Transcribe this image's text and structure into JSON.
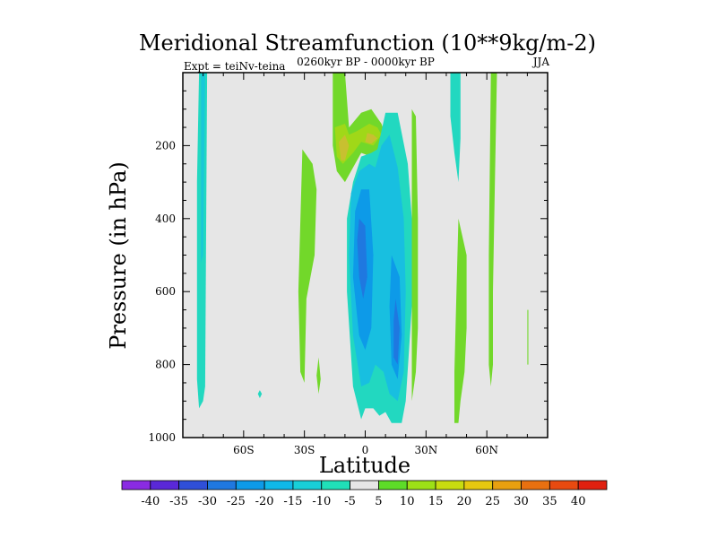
{
  "chart_data": {
    "type": "heatmap",
    "title": "Meridional Streamfunction (10**9kg/m-2)",
    "subtitle_left": "Expt = teiNv-teina",
    "subtitle_center": "0260kyr BP - 0000kyr BP",
    "subtitle_right": "JJA",
    "xlabel": "Latitude",
    "ylabel": "Pressure (in hPa)",
    "xlim": [
      -90,
      90
    ],
    "ylim": [
      0,
      1000
    ],
    "y_inverted": true,
    "x_ticks": [
      {
        "value": -60,
        "label": "60S"
      },
      {
        "value": -30,
        "label": "30S"
      },
      {
        "value": 0,
        "label": "0"
      },
      {
        "value": 30,
        "label": "30N"
      },
      {
        "value": 60,
        "label": "60N"
      }
    ],
    "y_ticks": [
      {
        "value": 200,
        "label": "200"
      },
      {
        "value": 400,
        "label": "400"
      },
      {
        "value": 600,
        "label": "600"
      },
      {
        "value": 800,
        "label": "800"
      },
      {
        "value": 1000,
        "label": "1000"
      }
    ],
    "background_color": "#e6e6e6",
    "colorbar": {
      "labels": [
        "-40",
        "-35",
        "-30",
        "-25",
        "-20",
        "-15",
        "-10",
        "-5",
        "5",
        "10",
        "15",
        "20",
        "25",
        "30",
        "35",
        "40"
      ],
      "colors": [
        "#8a2be2",
        "#5a28d8",
        "#2f4fd8",
        "#1f78e0",
        "#0d9ae8",
        "#10b8e8",
        "#18cfd8",
        "#20e0b8",
        "#e6e6e6",
        "#5ddc28",
        "#9de016",
        "#c8dc10",
        "#e6c810",
        "#e8a010",
        "#e87010",
        "#e84a10",
        "#e02010"
      ]
    },
    "regions": [
      {
        "name": "band-sp-outer",
        "value": -7,
        "color": "#22d8c0",
        "points": [
          [
            -82,
            0
          ],
          [
            -78,
            0
          ],
          [
            -79,
            860
          ],
          [
            -80,
            900
          ],
          [
            -82,
            920
          ],
          [
            -83,
            840
          ],
          [
            -83,
            300
          ]
        ]
      },
      {
        "name": "band-sp-inner",
        "value": -12,
        "color": "#18c8d8",
        "points": [
          [
            -81,
            0
          ],
          [
            -79,
            0
          ],
          [
            -80,
            500
          ],
          [
            -81,
            520
          ]
        ]
      },
      {
        "name": "spot-45s",
        "value": -7,
        "color": "#22d8c0",
        "points": [
          [
            -52,
            870
          ],
          [
            -51,
            880
          ],
          [
            -52,
            892
          ],
          [
            -53,
            880
          ]
        ]
      },
      {
        "name": "band-30s-pos",
        "value": 7,
        "color": "#72d82a",
        "points": [
          [
            -31,
            210
          ],
          [
            -26,
            250
          ],
          [
            -24,
            320
          ],
          [
            -25,
            500
          ],
          [
            -27,
            560
          ],
          [
            -29,
            620
          ],
          [
            -30,
            850
          ],
          [
            -32,
            820
          ],
          [
            -33,
            600
          ]
        ]
      },
      {
        "name": "spot-28s",
        "value": 7,
        "color": "#72d82a",
        "points": [
          [
            -23,
            780
          ],
          [
            -22,
            840
          ],
          [
            -23,
            880
          ],
          [
            -24,
            830
          ]
        ]
      },
      {
        "name": "band-upper-pos",
        "value": 8,
        "color": "#72d82a",
        "points": [
          [
            -16,
            0
          ],
          [
            -10,
            0
          ],
          [
            -8,
            150
          ],
          [
            -2,
            110
          ],
          [
            3,
            100
          ],
          [
            8,
            140
          ],
          [
            10,
            170
          ],
          [
            8,
            200
          ],
          [
            3,
            230
          ],
          [
            -2,
            220
          ],
          [
            -5,
            250
          ],
          [
            -10,
            300
          ],
          [
            -14,
            270
          ],
          [
            -16,
            200
          ]
        ]
      },
      {
        "name": "core-upper-pos",
        "value": 12,
        "color": "#a0d818",
        "points": [
          [
            -15,
            150
          ],
          [
            -10,
            140
          ],
          [
            -8,
            170
          ],
          [
            -4,
            160
          ],
          [
            2,
            140
          ],
          [
            6,
            150
          ],
          [
            8,
            170
          ],
          [
            4,
            200
          ],
          [
            -2,
            190
          ],
          [
            -6,
            220
          ],
          [
            -11,
            250
          ],
          [
            -14,
            230
          ]
        ]
      },
      {
        "name": "core-upper-max",
        "value": 17,
        "color": "#c8c030",
        "points": [
          [
            -13,
            190
          ],
          [
            -10,
            170
          ],
          [
            -8,
            200
          ],
          [
            -10,
            240
          ],
          [
            -12,
            240
          ]
        ]
      },
      {
        "name": "core-upper-max-2",
        "value": 17,
        "color": "#c8c030",
        "points": [
          [
            1,
            165
          ],
          [
            4,
            170
          ],
          [
            6,
            180
          ],
          [
            3,
            195
          ],
          [
            0,
            190
          ]
        ]
      },
      {
        "name": "band-central-neg-outer",
        "value": -7,
        "color": "#22d8c0",
        "points": [
          [
            -6,
            300
          ],
          [
            -2,
            230
          ],
          [
            3,
            220
          ],
          [
            6,
            210
          ],
          [
            10,
            110
          ],
          [
            16,
            110
          ],
          [
            21,
            250
          ],
          [
            23,
            400
          ],
          [
            23,
            640
          ],
          [
            20,
            900
          ],
          [
            18,
            960
          ],
          [
            13,
            960
          ],
          [
            10,
            930
          ],
          [
            7,
            940
          ],
          [
            4,
            920
          ],
          [
            0,
            920
          ],
          [
            -2,
            950
          ],
          [
            -6,
            860
          ],
          [
            -9,
            600
          ],
          [
            -9,
            400
          ]
        ]
      },
      {
        "name": "band-central-neg-mid",
        "value": -12,
        "color": "#18bfe0",
        "points": [
          [
            -7,
            330
          ],
          [
            -3,
            270
          ],
          [
            2,
            250
          ],
          [
            5,
            260
          ],
          [
            8,
            200
          ],
          [
            12,
            170
          ],
          [
            16,
            260
          ],
          [
            19,
            400
          ],
          [
            20,
            600
          ],
          [
            19,
            820
          ],
          [
            16,
            900
          ],
          [
            12,
            880
          ],
          [
            9,
            820
          ],
          [
            5,
            800
          ],
          [
            2,
            850
          ],
          [
            -2,
            860
          ],
          [
            -6,
            720
          ],
          [
            -8,
            500
          ]
        ]
      },
      {
        "name": "band-central-neg-inner",
        "value": -17,
        "color": "#0d9ae8",
        "points": [
          [
            -5,
            380
          ],
          [
            -2,
            320
          ],
          [
            2,
            320
          ],
          [
            4,
            500
          ],
          [
            3,
            700
          ],
          [
            0,
            760
          ],
          [
            -3,
            720
          ],
          [
            -6,
            560
          ]
        ]
      },
      {
        "name": "band-central-neg-inner-2",
        "value": -17,
        "color": "#0d9ae8",
        "points": [
          [
            13,
            500
          ],
          [
            17,
            560
          ],
          [
            18,
            720
          ],
          [
            16,
            840
          ],
          [
            13,
            800
          ],
          [
            12,
            640
          ]
        ]
      },
      {
        "name": "band-central-neg-core",
        "value": -22,
        "color": "#1f78e0",
        "points": [
          [
            -3,
            400
          ],
          [
            0,
            420
          ],
          [
            1,
            560
          ],
          [
            -1,
            620
          ],
          [
            -3,
            560
          ],
          [
            -4,
            460
          ]
        ]
      },
      {
        "name": "band-central-neg-core-2",
        "value": -22,
        "color": "#1f78e0",
        "points": [
          [
            15,
            620
          ],
          [
            17,
            700
          ],
          [
            16,
            800
          ],
          [
            14,
            780
          ],
          [
            14,
            680
          ]
        ]
      },
      {
        "name": "band-35n-pos",
        "value": 7,
        "color": "#72d82a",
        "points": [
          [
            23,
            100
          ],
          [
            25,
            120
          ],
          [
            26,
            400
          ],
          [
            26,
            700
          ],
          [
            25,
            820
          ],
          [
            23,
            900
          ],
          [
            23,
            700
          ]
        ]
      },
      {
        "name": "band-45n-neg",
        "value": -7,
        "color": "#22d8c0",
        "points": [
          [
            42,
            0
          ],
          [
            47,
            0
          ],
          [
            47,
            180
          ],
          [
            46,
            300
          ],
          [
            44,
            220
          ],
          [
            42,
            120
          ]
        ]
      },
      {
        "name": "band-50n-pos",
        "value": 7,
        "color": "#72d82a",
        "points": [
          [
            46,
            400
          ],
          [
            50,
            500
          ],
          [
            50,
            700
          ],
          [
            49,
            820
          ],
          [
            47,
            900
          ],
          [
            46,
            960
          ],
          [
            44,
            960
          ],
          [
            44,
            820
          ],
          [
            45,
            600
          ]
        ]
      },
      {
        "name": "band-57n-pos",
        "value": 7,
        "color": "#72d82a",
        "points": [
          [
            62,
            0
          ],
          [
            65,
            0
          ],
          [
            64,
            300
          ],
          [
            63,
            600
          ],
          [
            63,
            800
          ],
          [
            62,
            860
          ],
          [
            61,
            800
          ],
          [
            61,
            500
          ]
        ]
      },
      {
        "name": "band-80n-pos",
        "value": 7,
        "color": "#72d82a",
        "points": [
          [
            80,
            650
          ],
          [
            80.5,
            650
          ],
          [
            80.5,
            800
          ],
          [
            80,
            800
          ]
        ]
      }
    ]
  }
}
